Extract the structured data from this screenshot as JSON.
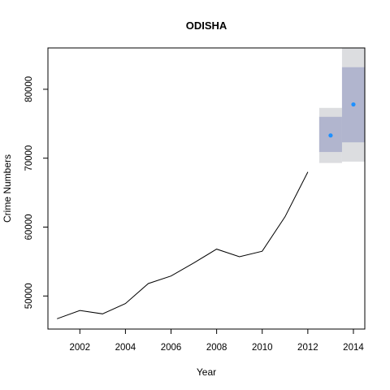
{
  "chart_data": {
    "type": "line",
    "title": "ODISHA",
    "xlabel": "Year",
    "ylabel": "Crime Numbers",
    "xlim": [
      2000.6,
      2014.5
    ],
    "ylim": [
      45200,
      86000
    ],
    "xticks": [
      "2002",
      "2004",
      "2006",
      "2008",
      "2010",
      "2012",
      "2014"
    ],
    "yticks": [
      "50000",
      "60000",
      "70000",
      "80000"
    ],
    "grid": false,
    "legend": "none",
    "series": [
      {
        "type": "line",
        "x": [
          2001,
          2002,
          2003,
          2004,
          2005,
          2006,
          2007,
          2008,
          2009,
          2010,
          2011,
          2012
        ],
        "y": [
          46700,
          47900,
          47400,
          48900,
          51800,
          52900,
          54800,
          56800,
          55700,
          56500,
          61500,
          68000
        ]
      },
      {
        "type": "forecast",
        "x": [
          2013,
          2014
        ],
        "y": [
          73300,
          77800
        ],
        "lo80": [
          70900,
          72300
        ],
        "hi80": [
          76000,
          83200
        ],
        "lo95": [
          69300,
          69500
        ],
        "hi95": [
          77300,
          86000
        ]
      }
    ],
    "colors": {
      "line": "#000000",
      "point": "#1e90ff",
      "band80": "#b1b5ce",
      "band95": "#dcdde0"
    }
  }
}
